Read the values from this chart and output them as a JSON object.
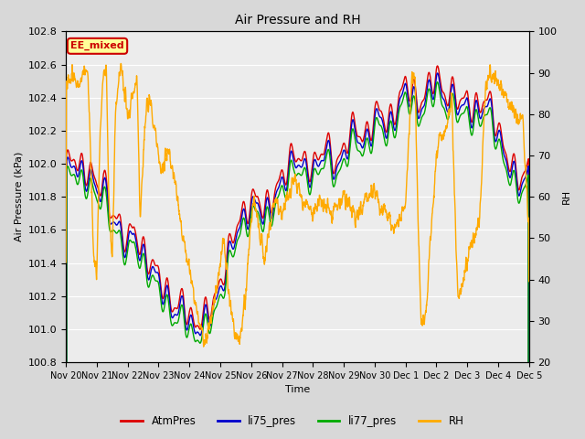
{
  "title": "Air Pressure and RH",
  "xlabel": "Time",
  "ylabel_left": "Air Pressure (kPa)",
  "ylabel_right": "RH",
  "ylim_left": [
    100.8,
    102.8
  ],
  "ylim_right": [
    20,
    100
  ],
  "yticks_left": [
    100.8,
    101.0,
    101.2,
    101.4,
    101.6,
    101.8,
    102.0,
    102.2,
    102.4,
    102.6,
    102.8
  ],
  "yticks_right": [
    20,
    30,
    40,
    50,
    60,
    70,
    80,
    90,
    100
  ],
  "date_labels": [
    "Nov 20",
    "Nov 21",
    "Nov 22",
    "Nov 23",
    "Nov 24",
    "Nov 25",
    "Nov 26",
    "Nov 27",
    "Nov 28",
    "Nov 29",
    "Nov 30",
    "Dec 1",
    "Dec 2",
    "Dec 3",
    "Dec 4",
    "Dec 5"
  ],
  "annotation_text": "EE_mixed",
  "annotation_color": "#cc0000",
  "annotation_bg": "#ffff99",
  "color_atmpres": "#dd0000",
  "color_li75": "#0000cc",
  "color_li77": "#00aa00",
  "color_rh": "#ffaa00",
  "legend_labels": [
    "AtmPres",
    "li75_pres",
    "li77_pres",
    "RH"
  ],
  "bg_color": "#d8d8d8",
  "plot_bg_color": "#ececec",
  "grid_color": "#ffffff",
  "linewidth": 1.0
}
